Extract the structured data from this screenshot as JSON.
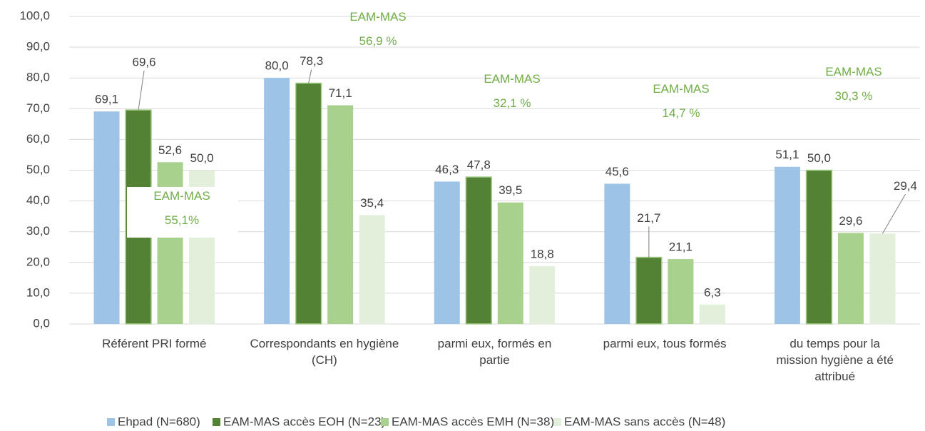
{
  "chart_data": {
    "type": "bar",
    "categories": [
      "Référent PRI formé",
      "Correspondants en hygiène (CH)",
      "parmi eux, formés en partie",
      "parmi eux, tous formés",
      "du temps pour la mission hygiène a été attribué"
    ],
    "series": [
      {
        "name": "Ehpad (N=680)",
        "color": "#9dc3e6",
        "values": [
          69.1,
          80.0,
          46.3,
          45.6,
          51.1
        ],
        "value_labels": [
          "69,1",
          "80,0",
          "46,3",
          "45,6",
          "51,1"
        ]
      },
      {
        "name": "EAM-MAS accès EOH (N=23)",
        "color": "#548235",
        "values": [
          69.6,
          78.3,
          47.8,
          21.7,
          50.0
        ],
        "value_labels": [
          "69,6",
          "78,3",
          "47,8",
          "21,7",
          "50,0"
        ]
      },
      {
        "name": "EAM-MAS accès EMH (N=38)",
        "color": "#a9d18e",
        "values": [
          52.6,
          71.1,
          39.5,
          21.1,
          29.6
        ],
        "value_labels": [
          "52,6",
          "71,1",
          "39,5",
          "21,1",
          "29,6"
        ]
      },
      {
        "name": "EAM-MAS sans accès (N=48)",
        "color": "#e2efda",
        "values": [
          50.0,
          35.4,
          18.8,
          6.3,
          29.4
        ],
        "value_labels": [
          "50,0",
          "35,4",
          "18,8",
          "6,3",
          "29,4"
        ]
      }
    ],
    "annotations": [
      [
        "EAM-MAS",
        "55,1%"
      ],
      [
        "EAM-MAS",
        "56,9 %"
      ],
      [
        "EAM-MAS",
        "32,1 %"
      ],
      [
        "EAM-MAS",
        "14,7 %"
      ],
      [
        "EAM-MAS",
        "30,3 %"
      ]
    ],
    "annotation_color": "#70ad47",
    "ylim": [
      0,
      100
    ],
    "yticks": [
      {
        "value": 0,
        "label": "0,0"
      },
      {
        "value": 10,
        "label": "10,0"
      },
      {
        "value": 20,
        "label": "20,0"
      },
      {
        "value": 30,
        "label": "30,0"
      },
      {
        "value": 40,
        "label": "40,0"
      },
      {
        "value": 50,
        "label": "50,0"
      },
      {
        "value": 60,
        "label": "60,0"
      },
      {
        "value": 70,
        "label": "70,0"
      },
      {
        "value": 80,
        "label": "80,0"
      },
      {
        "value": 90,
        "label": "90,0"
      },
      {
        "value": 100,
        "label": "100,0"
      }
    ],
    "grid": true,
    "legend": "bottom"
  }
}
